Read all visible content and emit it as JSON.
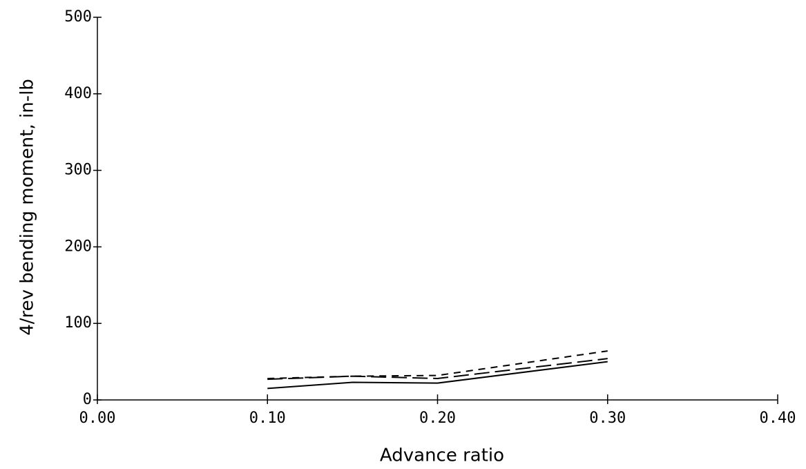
{
  "chart_data": {
    "type": "line",
    "xlabel": "Advance ratio",
    "ylabel": "4/rev bending moment, in-lb",
    "x": [
      0.1,
      0.15,
      0.2,
      0.3
    ],
    "series": [
      {
        "color": "#000000",
        "dash": "solid",
        "values": [
          15,
          23,
          22,
          50
        ]
      },
      {
        "color": "#000000",
        "dash": "long",
        "values": [
          27,
          31,
          28,
          54
        ]
      },
      {
        "color": "#000000",
        "dash": "short",
        "values": [
          28,
          31,
          32,
          64
        ]
      }
    ],
    "xlim": [
      0,
      0.4
    ],
    "xticks": [
      {
        "value": 0,
        "label": "0.00"
      },
      {
        "value": 0.1,
        "label": "0.10"
      },
      {
        "value": 0.2,
        "label": "0.20"
      },
      {
        "value": 0.3,
        "label": "0.30"
      },
      {
        "value": 0.4,
        "label": "0.40"
      }
    ],
    "ylim": [
      0,
      500
    ],
    "yticks": [
      0,
      100,
      200,
      300,
      400,
      500
    ],
    "grid": false
  }
}
